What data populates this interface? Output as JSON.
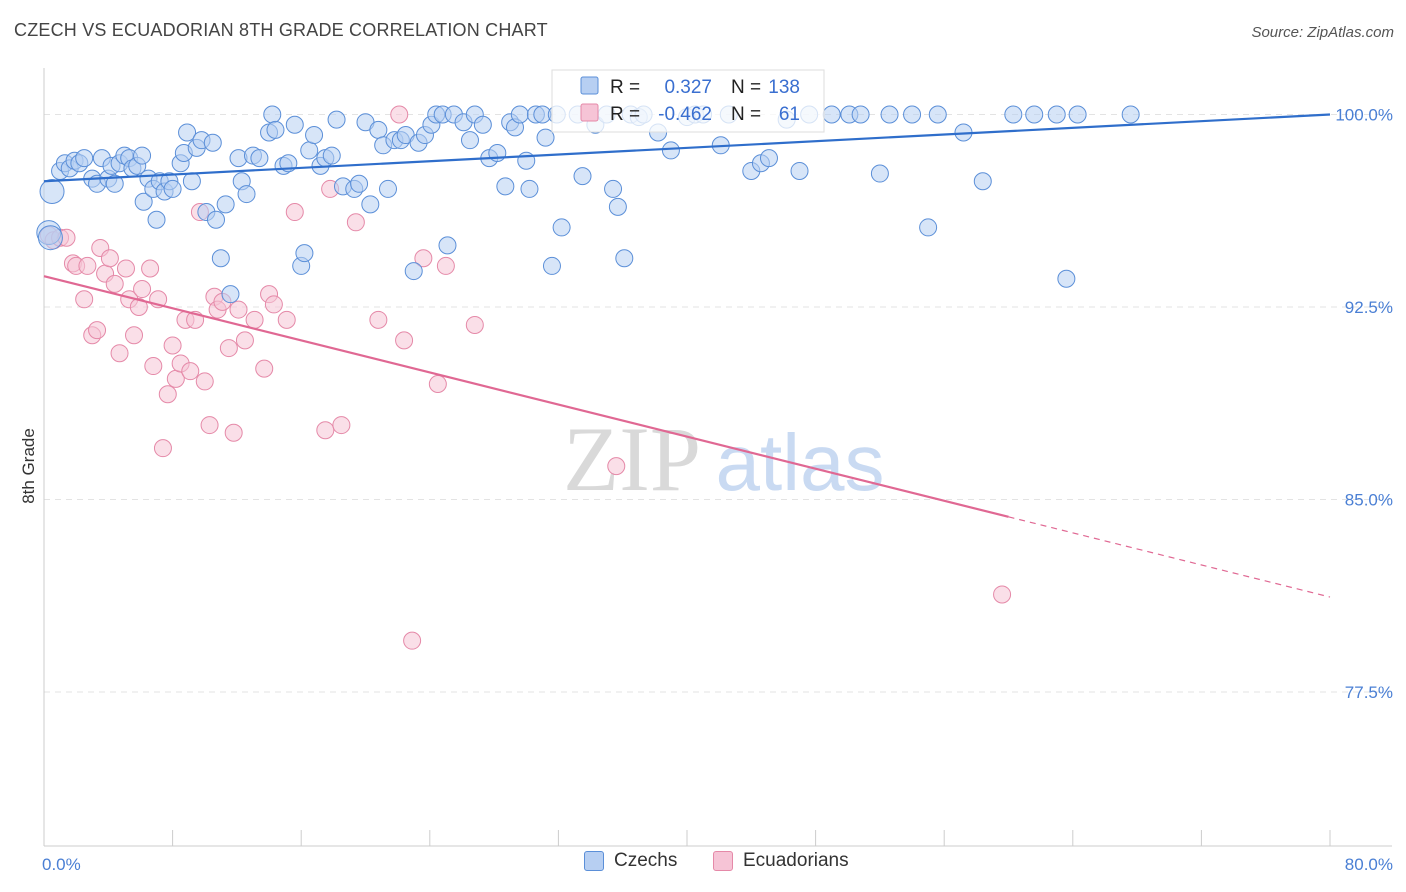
{
  "title": "CZECH VS ECUADORIAN 8TH GRADE CORRELATION CHART",
  "source": "Source: ZipAtlas.com",
  "watermark": {
    "zip": "ZIP",
    "atlas": "atlas"
  },
  "colors": {
    "czech_fill": "#b7cff2",
    "czech_stroke": "#5b8fd8",
    "czech_line": "#2f6ecb",
    "ecuador_fill": "#f6c4d6",
    "ecuador_stroke": "#e589a8",
    "ecuador_line": "#e06893",
    "tick_text": "#4a7fd4",
    "grid": "#e3e3e3"
  },
  "stats": {
    "r_label": "R =",
    "n_label": "N =",
    "czech": {
      "r": "0.327",
      "n": "138"
    },
    "ecuador": {
      "r": "-0.462",
      "n": "61"
    }
  },
  "legend": {
    "czech": "Czechs",
    "ecuador": "Ecuadorians"
  },
  "chart_data": {
    "type": "scatter",
    "ylabel": "8th Grade",
    "xlim": [
      0,
      80
    ],
    "ylim": [
      71.5,
      101.5
    ],
    "x_tick_labels": [
      {
        "value": 0,
        "label": "0.0%"
      },
      {
        "value": 80,
        "label": "80.0%"
      }
    ],
    "y_tick_labels": [
      {
        "value": 100,
        "label": "100.0%"
      },
      {
        "value": 92.5,
        "label": "92.5%"
      },
      {
        "value": 85,
        "label": "85.0%"
      },
      {
        "value": 77.5,
        "label": "77.5%"
      }
    ],
    "grid": true,
    "series": [
      {
        "name": "Czechs",
        "trend": {
          "x": [
            0,
            80
          ],
          "y": [
            97.4,
            100.0
          ],
          "dashed_from_x": null
        },
        "points": [
          [
            0.5,
            97.0
          ],
          [
            1.0,
            97.8
          ],
          [
            1.3,
            98.1
          ],
          [
            1.6,
            97.9
          ],
          [
            1.9,
            98.2
          ],
          [
            2.2,
            98.1
          ],
          [
            2.5,
            98.3
          ],
          [
            3.0,
            97.5
          ],
          [
            3.3,
            97.3
          ],
          [
            3.6,
            98.3
          ],
          [
            4.0,
            97.5
          ],
          [
            4.2,
            98.0
          ],
          [
            4.4,
            97.3
          ],
          [
            4.7,
            98.1
          ],
          [
            5.0,
            98.4
          ],
          [
            5.3,
            98.3
          ],
          [
            5.5,
            97.9
          ],
          [
            5.8,
            98.0
          ],
          [
            6.1,
            98.4
          ],
          [
            6.2,
            96.6
          ],
          [
            6.5,
            97.5
          ],
          [
            6.8,
            97.1
          ],
          [
            7.0,
            95.9
          ],
          [
            7.2,
            97.4
          ],
          [
            7.5,
            97.0
          ],
          [
            7.8,
            97.4
          ],
          [
            8.0,
            97.1
          ],
          [
            8.5,
            98.1
          ],
          [
            8.7,
            98.5
          ],
          [
            8.9,
            99.3
          ],
          [
            9.2,
            97.4
          ],
          [
            9.5,
            98.7
          ],
          [
            9.8,
            99.0
          ],
          [
            10.1,
            96.2
          ],
          [
            10.5,
            98.9
          ],
          [
            10.7,
            95.9
          ],
          [
            11.0,
            94.4
          ],
          [
            11.3,
            96.5
          ],
          [
            11.6,
            93.0
          ],
          [
            12.1,
            98.3
          ],
          [
            12.3,
            97.4
          ],
          [
            12.6,
            96.9
          ],
          [
            13.0,
            98.4
          ],
          [
            13.4,
            98.3
          ],
          [
            14.0,
            99.3
          ],
          [
            14.2,
            100.0
          ],
          [
            14.4,
            99.4
          ],
          [
            14.9,
            98.0
          ],
          [
            15.2,
            98.1
          ],
          [
            15.6,
            99.6
          ],
          [
            16.0,
            94.1
          ],
          [
            16.2,
            94.6
          ],
          [
            16.5,
            98.6
          ],
          [
            16.8,
            99.2
          ],
          [
            17.2,
            98.0
          ],
          [
            17.5,
            98.3
          ],
          [
            17.9,
            98.4
          ],
          [
            18.2,
            99.8
          ],
          [
            18.6,
            97.2
          ],
          [
            19.3,
            97.1
          ],
          [
            19.6,
            97.3
          ],
          [
            20.0,
            99.7
          ],
          [
            20.3,
            96.5
          ],
          [
            20.8,
            99.4
          ],
          [
            21.1,
            98.8
          ],
          [
            21.4,
            97.1
          ],
          [
            21.8,
            99.0
          ],
          [
            22.2,
            99.0
          ],
          [
            22.5,
            99.2
          ],
          [
            23.0,
            93.9
          ],
          [
            23.3,
            98.9
          ],
          [
            23.7,
            99.2
          ],
          [
            24.1,
            99.6
          ],
          [
            24.4,
            100.0
          ],
          [
            24.8,
            100.0
          ],
          [
            25.1,
            94.9
          ],
          [
            25.5,
            100.0
          ],
          [
            26.1,
            99.7
          ],
          [
            26.5,
            99.0
          ],
          [
            26.8,
            100.0
          ],
          [
            27.3,
            99.6
          ],
          [
            27.7,
            98.3
          ],
          [
            28.2,
            98.5
          ],
          [
            28.7,
            97.2
          ],
          [
            29.0,
            99.7
          ],
          [
            29.3,
            99.5
          ],
          [
            29.6,
            100.0
          ],
          [
            30.0,
            98.2
          ],
          [
            30.2,
            97.1
          ],
          [
            30.6,
            100.0
          ],
          [
            31.0,
            100.0
          ],
          [
            31.2,
            99.1
          ],
          [
            31.6,
            94.1
          ],
          [
            31.9,
            100.0
          ],
          [
            32.2,
            95.6
          ],
          [
            33.2,
            100.0
          ],
          [
            33.5,
            97.6
          ],
          [
            34.3,
            99.6
          ],
          [
            35.0,
            100.0
          ],
          [
            35.4,
            97.1
          ],
          [
            35.7,
            96.4
          ],
          [
            36.1,
            94.4
          ],
          [
            36.5,
            100.0
          ],
          [
            37.0,
            99.9
          ],
          [
            37.3,
            100.0
          ],
          [
            38.2,
            99.3
          ],
          [
            39.0,
            98.6
          ],
          [
            40.0,
            99.9
          ],
          [
            40.5,
            100.0
          ],
          [
            41.0,
            100.0
          ],
          [
            42.1,
            98.8
          ],
          [
            42.6,
            100.0
          ],
          [
            44.0,
            97.8
          ],
          [
            44.6,
            98.1
          ],
          [
            45.1,
            98.3
          ],
          [
            46.2,
            99.8
          ],
          [
            47.0,
            97.8
          ],
          [
            47.6,
            100.0
          ],
          [
            49.0,
            100.0
          ],
          [
            50.1,
            100.0
          ],
          [
            50.8,
            100.0
          ],
          [
            52.0,
            97.7
          ],
          [
            52.6,
            100.0
          ],
          [
            54.0,
            100.0
          ],
          [
            55.0,
            95.6
          ],
          [
            55.6,
            100.0
          ],
          [
            57.2,
            99.3
          ],
          [
            58.4,
            97.4
          ],
          [
            60.3,
            100.0
          ],
          [
            61.6,
            100.0
          ],
          [
            63.0,
            100.0
          ],
          [
            63.6,
            93.6
          ],
          [
            64.3,
            100.0
          ],
          [
            67.6,
            100.0
          ],
          [
            0.3,
            95.4
          ],
          [
            0.4,
            95.2
          ]
        ]
      },
      {
        "name": "Ecuadorians",
        "trend": {
          "x": [
            0,
            80
          ],
          "y": [
            93.7,
            81.2
          ],
          "dashed_from_x": 60
        },
        "points": [
          [
            0.3,
            95.3
          ],
          [
            0.6,
            95.1
          ],
          [
            1.0,
            95.2
          ],
          [
            1.4,
            95.2
          ],
          [
            1.8,
            94.2
          ],
          [
            2.0,
            94.1
          ],
          [
            2.5,
            92.8
          ],
          [
            2.7,
            94.1
          ],
          [
            3.0,
            91.4
          ],
          [
            3.3,
            91.6
          ],
          [
            3.5,
            94.8
          ],
          [
            3.8,
            93.8
          ],
          [
            4.1,
            94.4
          ],
          [
            4.4,
            93.4
          ],
          [
            4.7,
            90.7
          ],
          [
            5.1,
            94.0
          ],
          [
            5.3,
            92.8
          ],
          [
            5.6,
            91.4
          ],
          [
            5.9,
            92.5
          ],
          [
            6.1,
            93.2
          ],
          [
            6.6,
            94.0
          ],
          [
            6.8,
            90.2
          ],
          [
            7.1,
            92.8
          ],
          [
            7.4,
            87.0
          ],
          [
            7.7,
            89.1
          ],
          [
            8.0,
            91.0
          ],
          [
            8.2,
            89.7
          ],
          [
            8.5,
            90.3
          ],
          [
            8.8,
            92.0
          ],
          [
            9.1,
            90.0
          ],
          [
            9.4,
            92.0
          ],
          [
            9.7,
            96.2
          ],
          [
            10.0,
            89.6
          ],
          [
            10.3,
            87.9
          ],
          [
            10.6,
            92.9
          ],
          [
            10.8,
            92.4
          ],
          [
            11.1,
            92.7
          ],
          [
            11.5,
            90.9
          ],
          [
            11.8,
            87.6
          ],
          [
            12.1,
            92.4
          ],
          [
            12.5,
            91.2
          ],
          [
            13.1,
            92.0
          ],
          [
            13.7,
            90.1
          ],
          [
            14.0,
            93.0
          ],
          [
            14.3,
            92.6
          ],
          [
            15.1,
            92.0
          ],
          [
            15.6,
            96.2
          ],
          [
            17.5,
            87.7
          ],
          [
            17.8,
            97.1
          ],
          [
            18.5,
            87.9
          ],
          [
            19.4,
            95.8
          ],
          [
            20.8,
            92.0
          ],
          [
            22.1,
            100.0
          ],
          [
            22.4,
            91.2
          ],
          [
            22.9,
            79.5
          ],
          [
            23.6,
            94.4
          ],
          [
            24.5,
            89.5
          ],
          [
            25.0,
            94.1
          ],
          [
            26.8,
            91.8
          ],
          [
            35.6,
            86.3
          ],
          [
            59.6,
            81.3
          ]
        ]
      }
    ]
  }
}
